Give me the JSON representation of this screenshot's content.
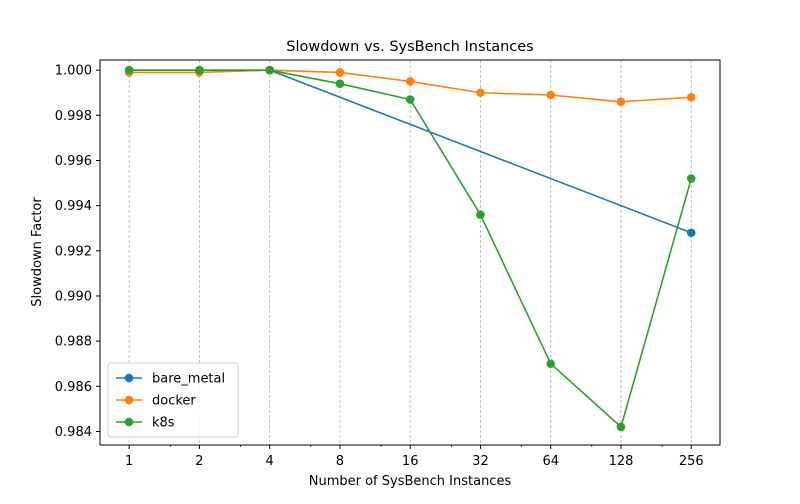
{
  "chart_data": {
    "type": "line",
    "title": "Slowdown vs. SysBench Instances",
    "xlabel": "Number of SysBench Instances",
    "ylabel": "Slowdown Factor",
    "x_scale": "log2",
    "x": [
      1,
      2,
      4,
      8,
      16,
      32,
      64,
      128,
      256
    ],
    "x_tick_labels": [
      "1",
      "2",
      "4",
      "8",
      "16",
      "32",
      "64",
      "128",
      "256"
    ],
    "y_tick_values": [
      0.984,
      0.986,
      0.988,
      0.99,
      0.992,
      0.994,
      0.996,
      0.998,
      1.0
    ],
    "y_tick_labels": [
      "0.984",
      "0.986",
      "0.988",
      "0.990",
      "0.992",
      "0.994",
      "0.996",
      "0.998",
      "1.000"
    ],
    "ylim": [
      0.9834,
      1.00045
    ],
    "xlim": [
      0.75,
      340
    ],
    "grid": "vertical-dashed",
    "legend_position": "lower-left",
    "series": [
      {
        "name": "bare_metal",
        "color": "#1f77b4",
        "points": [
          {
            "x": 1,
            "y": 1.0
          },
          {
            "x": 2,
            "y": 1.0
          },
          {
            "x": 4,
            "y": 1.0
          },
          {
            "x": 256,
            "y": 0.9928
          }
        ]
      },
      {
        "name": "docker",
        "color": "#ff7f0e",
        "points": [
          {
            "x": 1,
            "y": 0.9999
          },
          {
            "x": 2,
            "y": 0.9999
          },
          {
            "x": 4,
            "y": 1.0
          },
          {
            "x": 8,
            "y": 0.9999
          },
          {
            "x": 16,
            "y": 0.9995
          },
          {
            "x": 32,
            "y": 0.999
          },
          {
            "x": 64,
            "y": 0.9989
          },
          {
            "x": 128,
            "y": 0.9986
          },
          {
            "x": 256,
            "y": 0.9988
          }
        ]
      },
      {
        "name": "k8s",
        "color": "#2ca02c",
        "points": [
          {
            "x": 1,
            "y": 1.0
          },
          {
            "x": 2,
            "y": 1.0
          },
          {
            "x": 4,
            "y": 1.0
          },
          {
            "x": 8,
            "y": 0.9994
          },
          {
            "x": 16,
            "y": 0.9987
          },
          {
            "x": 32,
            "y": 0.9936
          },
          {
            "x": 64,
            "y": 0.987
          },
          {
            "x": 128,
            "y": 0.9842
          },
          {
            "x": 256,
            "y": 0.9952
          }
        ]
      }
    ]
  }
}
